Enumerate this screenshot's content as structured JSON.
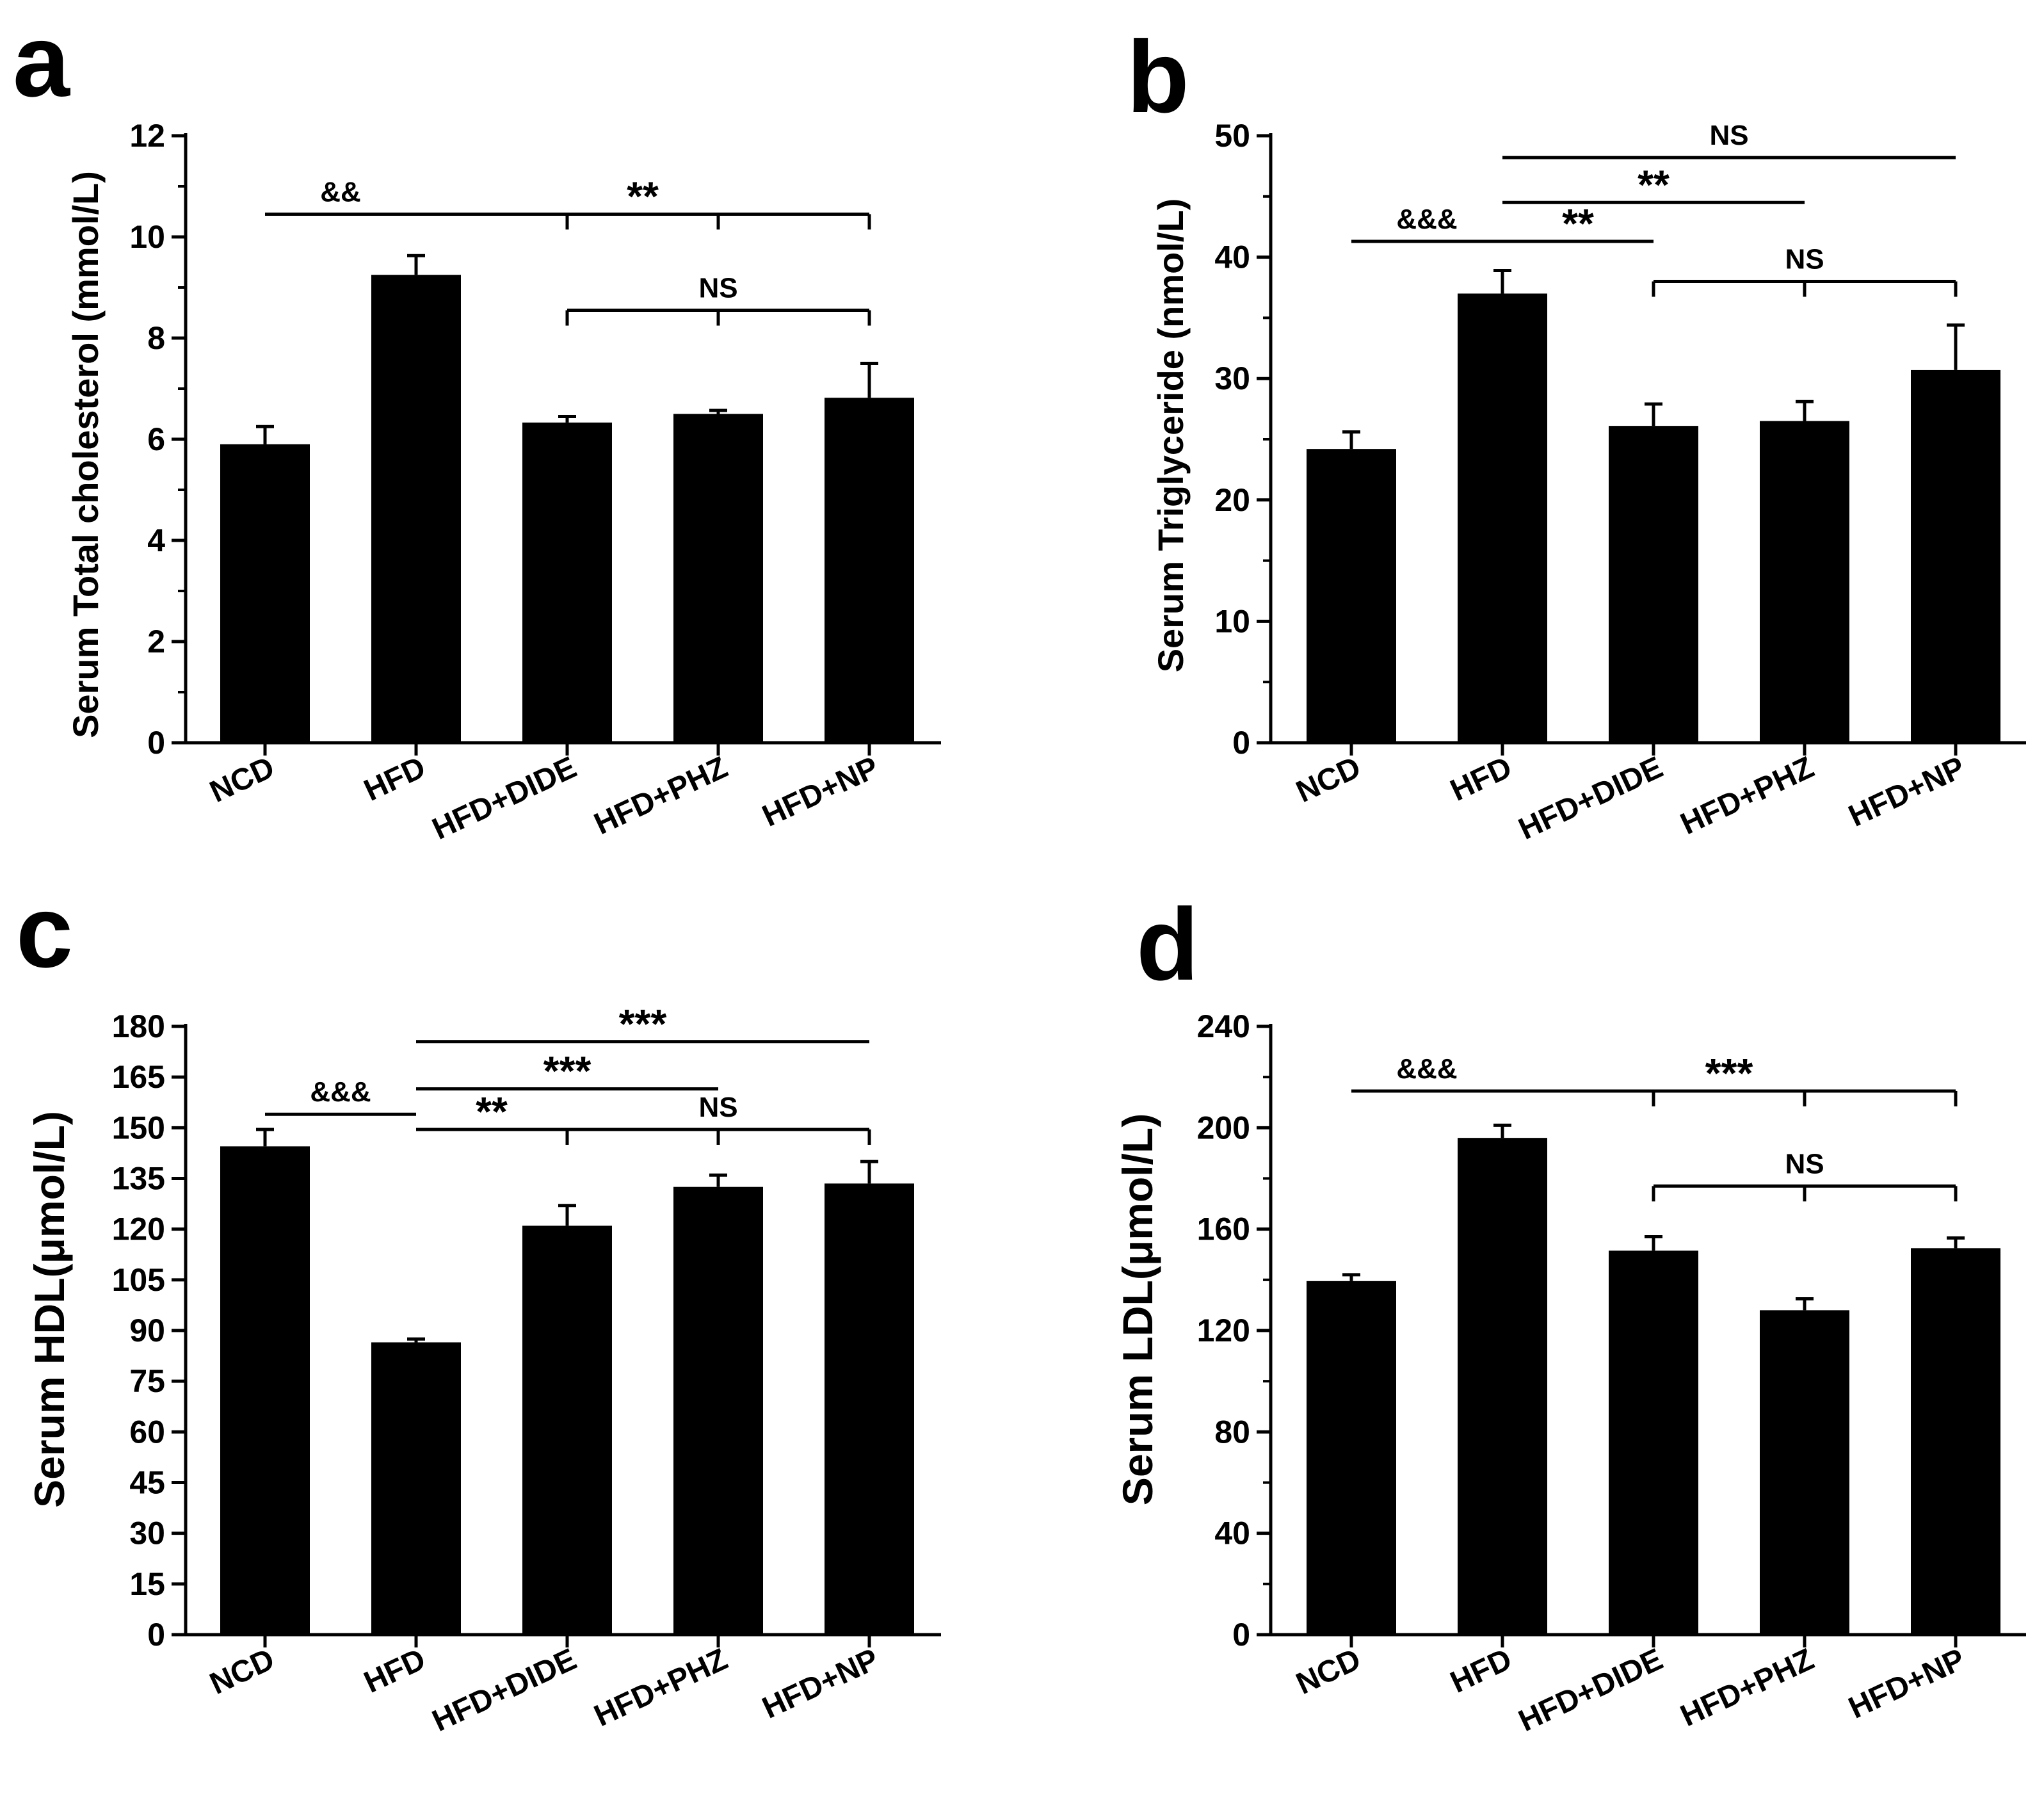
{
  "chart_data": [
    {
      "panel": "a",
      "type": "bar",
      "categories": [
        "NCD",
        "HFD",
        "HFD+DIDE",
        "HFD+PHZ",
        "HFD+NP"
      ],
      "values": [
        5.9,
        9.25,
        6.33,
        6.5,
        6.82
      ],
      "errors": [
        0.35,
        0.38,
        0.12,
        0.07,
        0.68
      ],
      "ylabel": "Serum Total cholesterol (mmol/L)",
      "ylim": [
        0,
        12
      ],
      "yticks": [
        0,
        2,
        4,
        6,
        8,
        10,
        12
      ],
      "ytick_labels": [
        "0",
        "2",
        "4",
        "6",
        "8",
        "10",
        "12"
      ],
      "minor_ticks": true,
      "color": "#000000",
      "annotations": [
        {
          "label": "&&",
          "from": 0,
          "to": 1,
          "y": 10.45,
          "style": "line",
          "size": "small"
        },
        {
          "label": "**",
          "from": 1,
          "to": 4,
          "y": 10.45,
          "style": "bracket",
          "drops": [
            2,
            3,
            4
          ],
          "size": "large"
        },
        {
          "label": "NS",
          "from": 2,
          "to": 4,
          "y": 8.55,
          "style": "bracket",
          "drops": [
            2,
            3,
            4
          ],
          "size": "small"
        }
      ]
    },
    {
      "panel": "b",
      "type": "bar",
      "categories": [
        "NCD",
        "HFD",
        "HFD+DIDE",
        "HFD+PHZ",
        "HFD+NP"
      ],
      "values": [
        24.2,
        37.0,
        26.1,
        26.5,
        30.7
      ],
      "errors": [
        1.4,
        1.9,
        1.8,
        1.6,
        3.7
      ],
      "ylabel": "Serum Triglyceride (nmol/L)",
      "ylim": [
        0,
        50
      ],
      "yticks": [
        0,
        10,
        20,
        30,
        40,
        50
      ],
      "ytick_labels": [
        "0",
        "10",
        "20",
        "30",
        "40",
        "50"
      ],
      "minor_ticks": true,
      "color": "#000000",
      "annotations": [
        {
          "label": "NS",
          "from": 1,
          "to": 4,
          "y": 48.2,
          "style": "line",
          "size": "small"
        },
        {
          "label": "**",
          "from": 1,
          "to": 3,
          "y": 44.5,
          "style": "line",
          "size": "large"
        },
        {
          "label": "&&&",
          "from": 0,
          "to": 1,
          "y": 41.3,
          "style": "line",
          "size": "small"
        },
        {
          "label": "**",
          "from": 1,
          "to": 2,
          "y": 41.3,
          "style": "line",
          "size": "large"
        },
        {
          "label": "NS",
          "from": 2,
          "to": 4,
          "y": 38.0,
          "style": "bracket",
          "drops": [
            2,
            3,
            4
          ],
          "size": "small"
        }
      ]
    },
    {
      "panel": "c",
      "type": "bar",
      "categories": [
        "NCD",
        "HFD",
        "HFD+DIDE",
        "HFD+PHZ",
        "HFD+NP"
      ],
      "values": [
        144.5,
        86.5,
        121.0,
        132.5,
        133.5
      ],
      "errors": [
        5.0,
        1.0,
        6.0,
        3.5,
        6.5
      ],
      "ylabel": "Serum HDL(μmol/L)",
      "ylim": [
        0,
        180
      ],
      "yticks": [
        0,
        15,
        30,
        45,
        60,
        75,
        90,
        105,
        120,
        135,
        150,
        165,
        180
      ],
      "ytick_labels": [
        "0",
        "15",
        "30",
        "45",
        "60",
        "75",
        "90",
        "105",
        "120",
        "135",
        "150",
        "165",
        "180"
      ],
      "minor_ticks": false,
      "color": "#000000",
      "annotations": [
        {
          "label": "***",
          "from": 1,
          "to": 4,
          "y": 175.5,
          "style": "line",
          "size": "large"
        },
        {
          "label": "***",
          "from": 1,
          "to": 3,
          "y": 161.5,
          "style": "line",
          "size": "large"
        },
        {
          "label": "&&&",
          "from": 0,
          "to": 1,
          "y": 154.0,
          "style": "line",
          "size": "small"
        },
        {
          "label": "**",
          "from": 1,
          "to": 2,
          "y": 149.5,
          "style": "line",
          "size": "large"
        },
        {
          "label": "NS",
          "from": 2,
          "to": 4,
          "y": 149.5,
          "style": "bracket",
          "drops": [
            2,
            3,
            4
          ],
          "size": "small"
        }
      ]
    },
    {
      "panel": "d",
      "type": "bar",
      "categories": [
        "NCD",
        "HFD",
        "HFD+DIDE",
        "HFD+PHZ",
        "HFD+NP"
      ],
      "values": [
        139.5,
        196.0,
        151.5,
        128.0,
        152.5
      ],
      "errors": [
        2.5,
        5.0,
        5.5,
        4.5,
        4.0
      ],
      "ylabel": "Serum LDL(μmol/L)",
      "ylim": [
        0,
        240
      ],
      "yticks": [
        0,
        40,
        80,
        120,
        160,
        200,
        240
      ],
      "ytick_labels": [
        "0",
        "40",
        "80",
        "120",
        "160",
        "200",
        "240"
      ],
      "minor_ticks": true,
      "color": "#000000",
      "annotations": [
        {
          "label": "&&&",
          "from": 0,
          "to": 1,
          "y": 214.5,
          "style": "line",
          "size": "small"
        },
        {
          "label": "***",
          "from": 1,
          "to": 4,
          "y": 214.5,
          "style": "bracket",
          "drops": [
            2,
            3,
            4
          ],
          "size": "large"
        },
        {
          "label": "NS",
          "from": 2,
          "to": 4,
          "y": 177.0,
          "style": "bracket",
          "drops": [
            2,
            3,
            4
          ],
          "size": "small"
        }
      ]
    }
  ]
}
